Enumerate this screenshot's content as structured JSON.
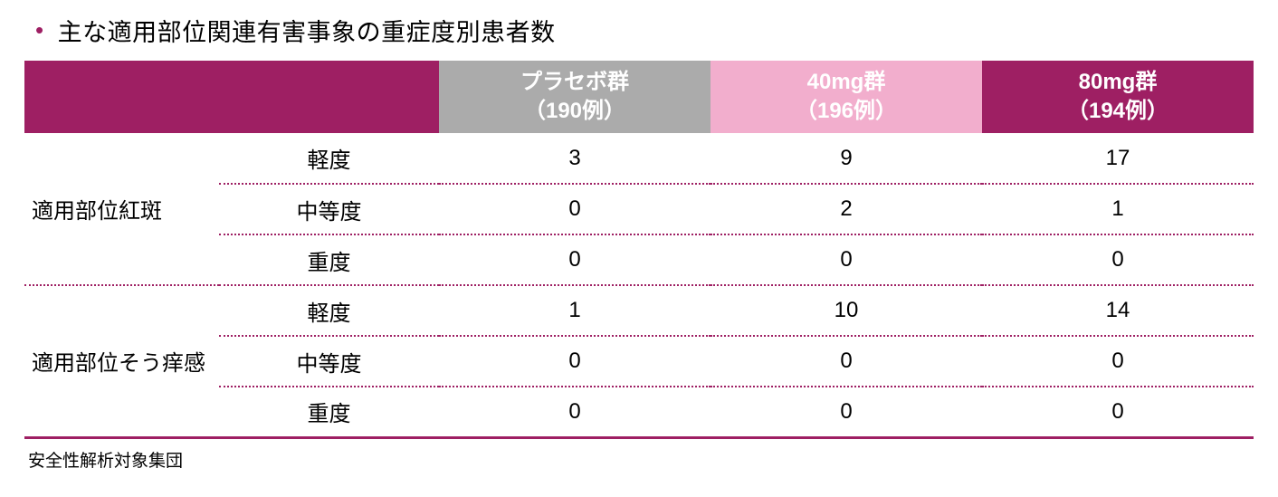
{
  "title": {
    "bullet": "•",
    "text": "主な適用部位関連有害事象の重症度別患者数"
  },
  "table": {
    "header": {
      "corner": "",
      "columns": [
        {
          "line1": "プラセボ群",
          "line2": "（190例）",
          "bg": "#ABABAB"
        },
        {
          "line1": "40mg群",
          "line2": "（196例）",
          "bg": "#F2AECD"
        },
        {
          "line1": "80mg群",
          "line2": "（194例）",
          "bg": "#9E1F63"
        }
      ]
    },
    "groups": [
      {
        "name": "適用部位紅斑",
        "rows": [
          {
            "severity": "軽度",
            "values": [
              "3",
              "9",
              "17"
            ]
          },
          {
            "severity": "中等度",
            "values": [
              "0",
              "2",
              "1"
            ]
          },
          {
            "severity": "重度",
            "values": [
              "0",
              "0",
              "0"
            ]
          }
        ]
      },
      {
        "name": "適用部位そう痒感",
        "rows": [
          {
            "severity": "軽度",
            "values": [
              "1",
              "10",
              "14"
            ]
          },
          {
            "severity": "中等度",
            "values": [
              "0",
              "0",
              "0"
            ]
          },
          {
            "severity": "重度",
            "values": [
              "0",
              "0",
              "0"
            ]
          }
        ]
      }
    ],
    "footnote": "安全性解析対象集団"
  },
  "colors": {
    "accent": "#9E1F63",
    "header_gray": "#ABABAB",
    "header_pink": "#F2AECD",
    "header_dark": "#9E1F63",
    "text": "#000000"
  },
  "chart_data": {
    "type": "table",
    "title": "主な適用部位関連有害事象の重症度別患者数",
    "columns": [
      "",
      "",
      "プラセボ群（190例）",
      "40mg群（196例）",
      "80mg群（194例）"
    ],
    "rows": [
      [
        "適用部位紅斑",
        "軽度",
        3,
        9,
        17
      ],
      [
        "適用部位紅斑",
        "中等度",
        0,
        2,
        1
      ],
      [
        "適用部位紅斑",
        "重度",
        0,
        0,
        0
      ],
      [
        "適用部位そう痒感",
        "軽度",
        1,
        10,
        14
      ],
      [
        "適用部位そう痒感",
        "中等度",
        0,
        0,
        0
      ],
      [
        "適用部位そう痒感",
        "重度",
        0,
        0,
        0
      ]
    ],
    "footnote": "安全性解析対象集団"
  }
}
